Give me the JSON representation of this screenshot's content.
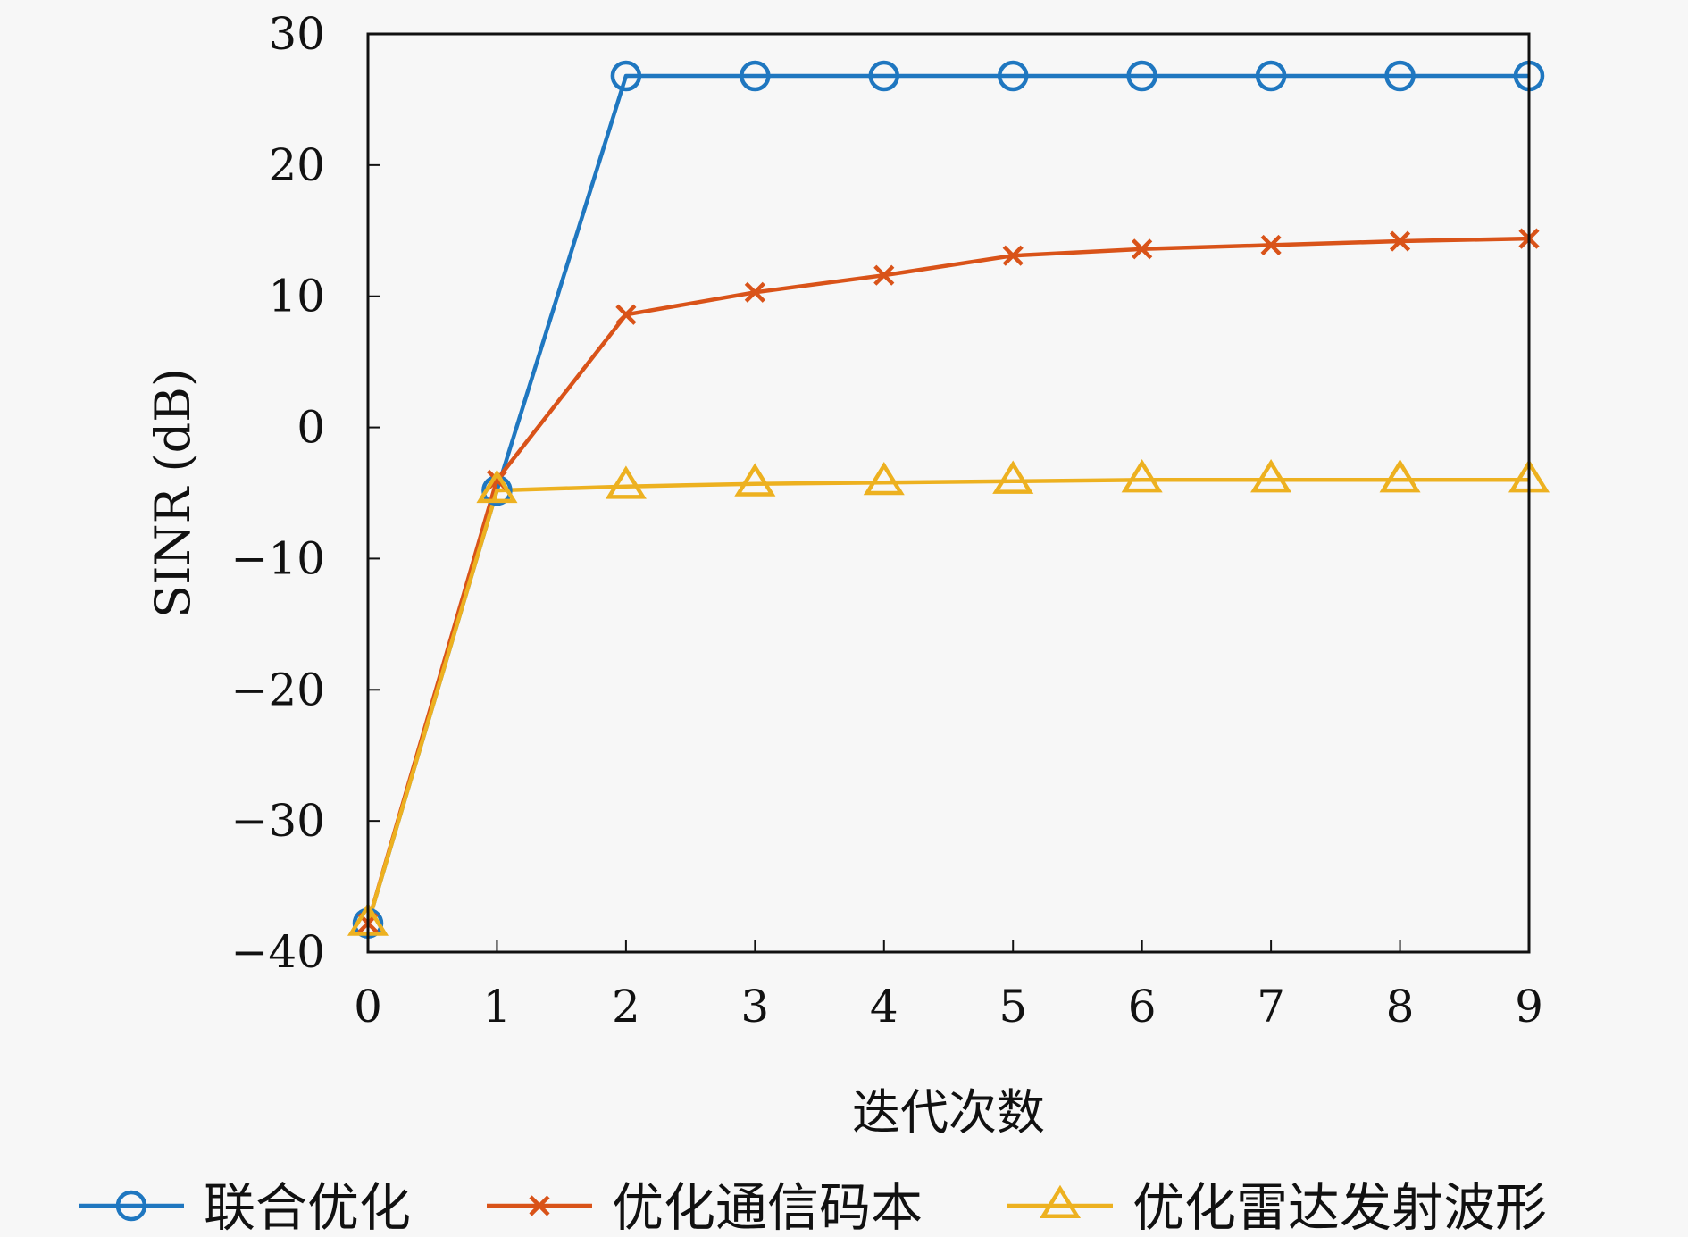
{
  "chart_data": {
    "type": "line",
    "xlabel": "迭代次数",
    "ylabel": "SINR (dB)",
    "xlim": [
      0,
      9
    ],
    "ylim": [
      -40,
      30
    ],
    "x": [
      0,
      1,
      2,
      3,
      4,
      5,
      6,
      7,
      8,
      9
    ],
    "x_ticks": [
      0,
      1,
      2,
      3,
      4,
      5,
      6,
      7,
      8,
      9
    ],
    "y_ticks": [
      30,
      20,
      10,
      0,
      -10,
      -20,
      -30,
      -40
    ],
    "y_tick_labels": [
      "30",
      "20",
      "10",
      "0",
      "−10",
      "−20",
      "−30",
      "−40"
    ],
    "grid": false,
    "legend_position": "bottom",
    "series": [
      {
        "name": "联合优化",
        "color": "#1f77c0",
        "marker": "circle",
        "values": [
          -37.8,
          -4.8,
          26.8,
          26.8,
          26.8,
          26.8,
          26.8,
          26.8,
          26.8,
          26.8
        ]
      },
      {
        "name": "优化通信码本",
        "color": "#d95319",
        "marker": "cross",
        "values": [
          -37.8,
          -4.0,
          8.6,
          10.3,
          11.6,
          13.1,
          13.6,
          13.9,
          14.2,
          14.4
        ]
      },
      {
        "name": "优化雷达发射波形",
        "color": "#edb120",
        "marker": "triangle",
        "values": [
          -37.8,
          -4.8,
          -4.5,
          -4.3,
          -4.2,
          -4.1,
          -4.0,
          -4.0,
          -4.0,
          -4.0
        ]
      }
    ]
  }
}
